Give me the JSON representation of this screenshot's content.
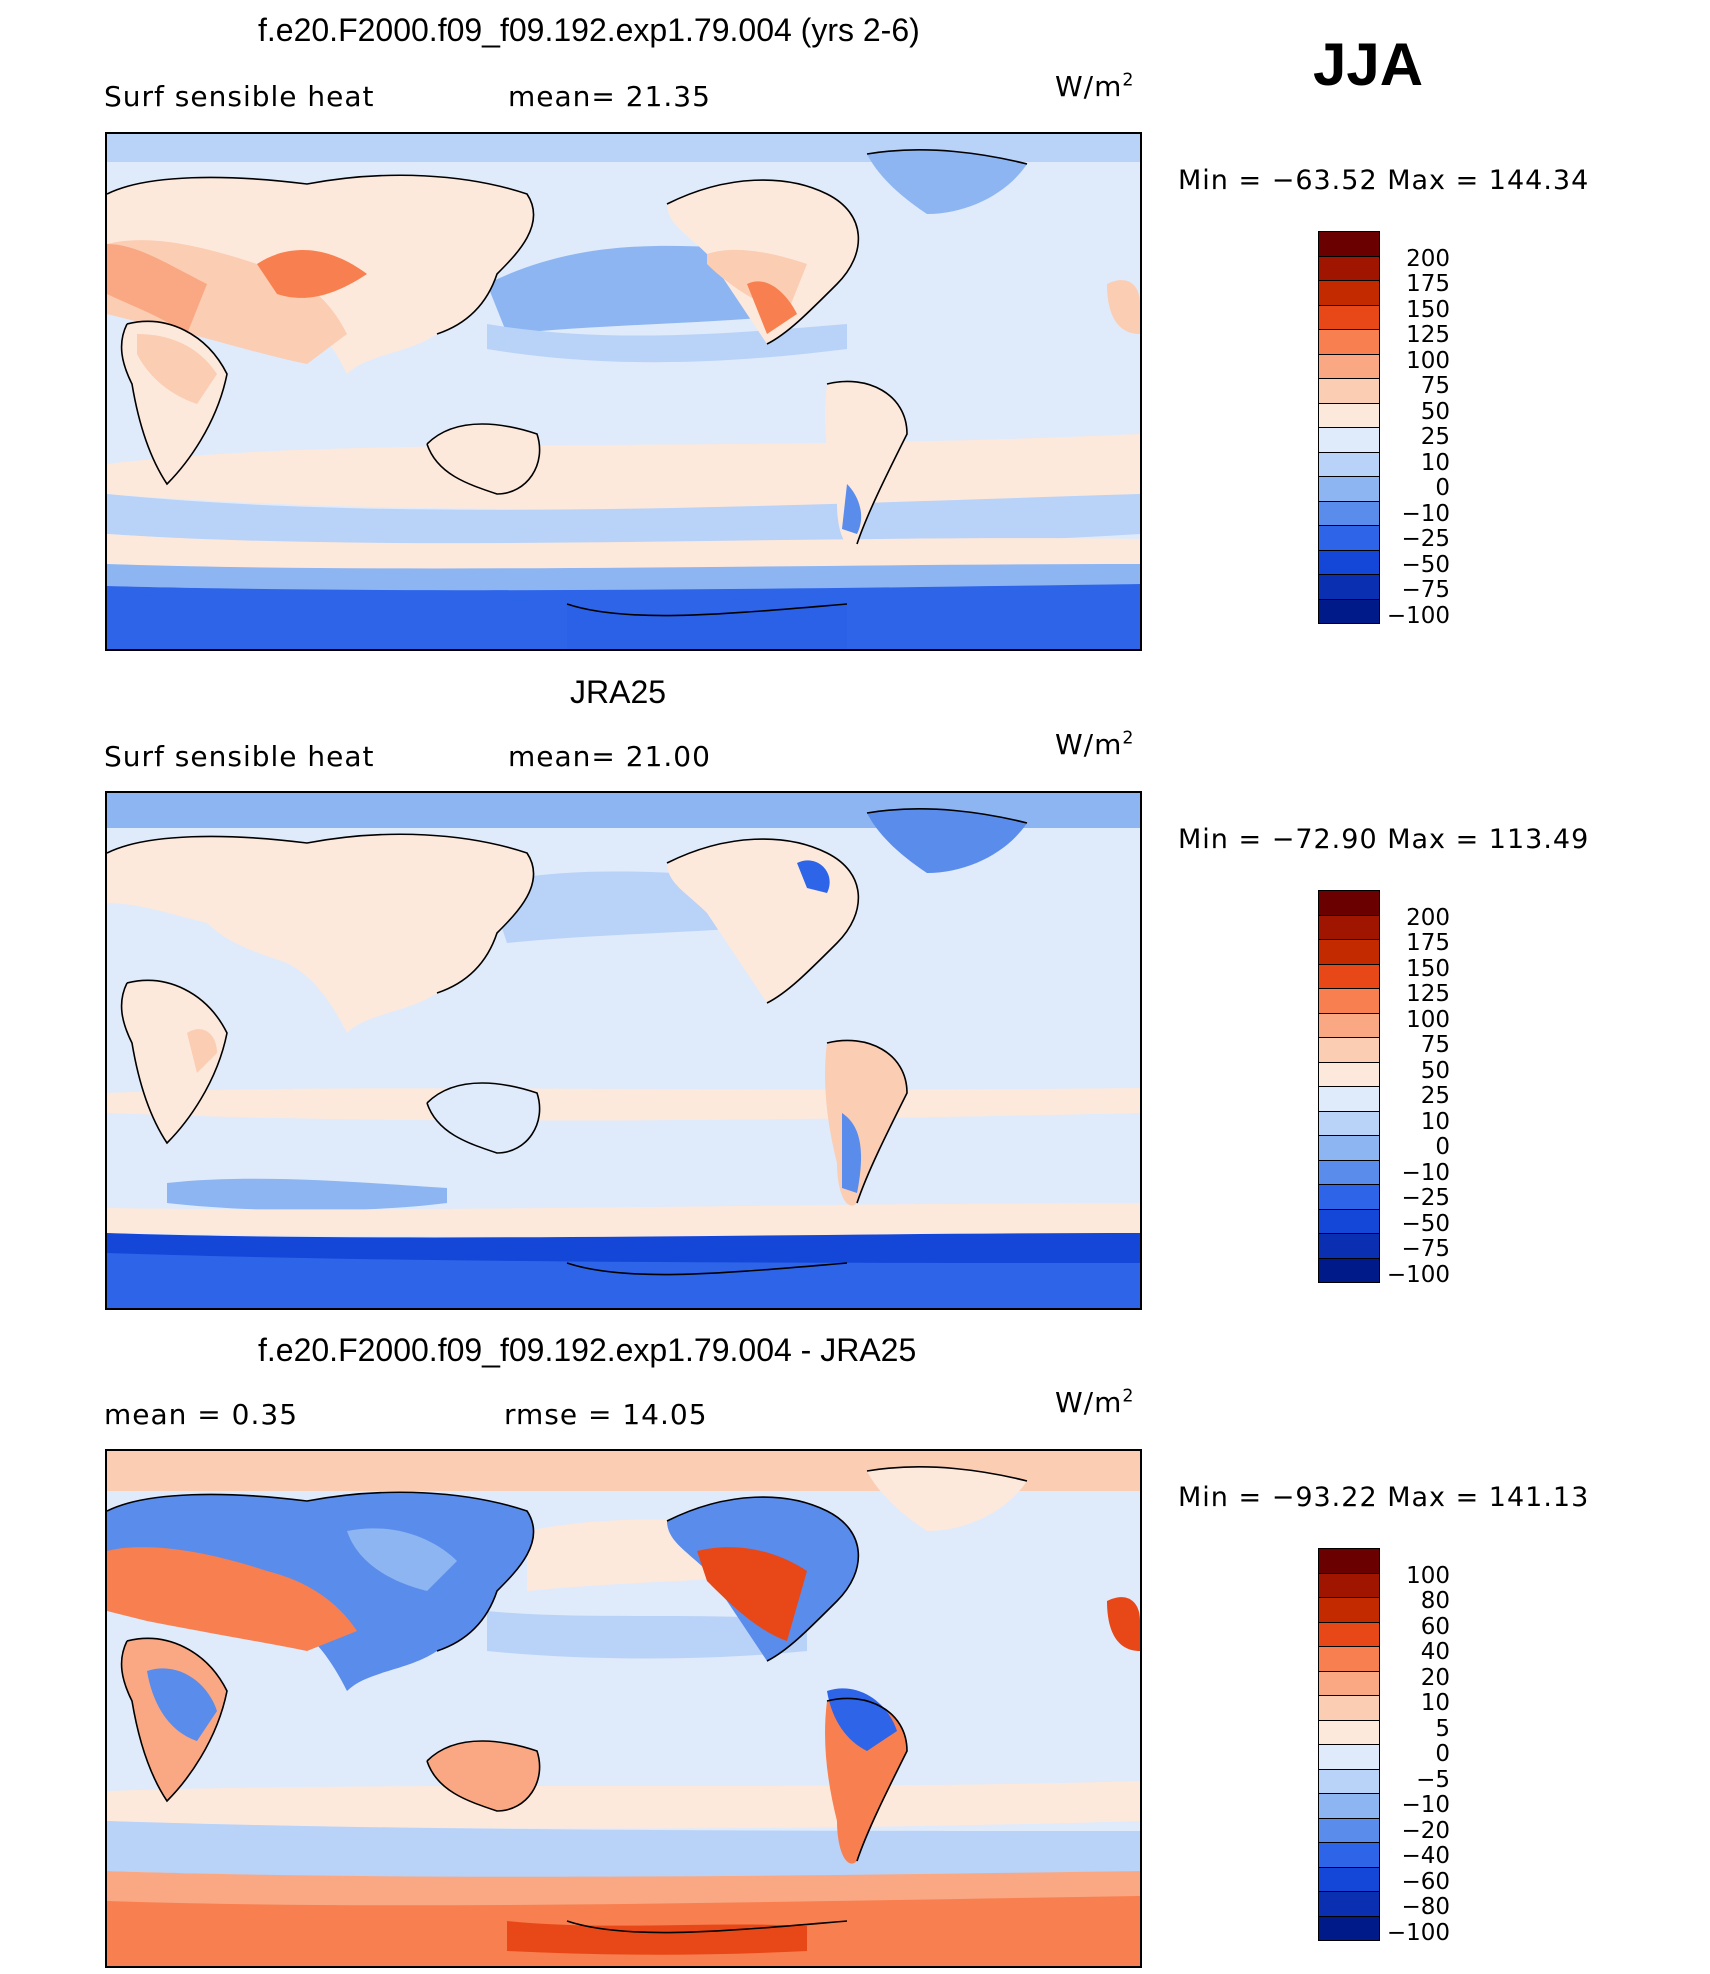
{
  "season": "JJA",
  "units": "W/m",
  "units_sup": "2",
  "panels": [
    {
      "title": "f.e20.F2000.f09_f09.192.exp1.79.004 (yrs 2-6)",
      "left_label": "Surf  sensible  heat",
      "mid_label": "mean=   21.35",
      "minmax": "Min  =  −63.52  Max  =  144.34",
      "levels": [
        "200",
        "175",
        "150",
        "125",
        "100",
        "75",
        "50",
        "25",
        "10",
        "0",
        "−10",
        "−25",
        "−50",
        "−75",
        "−100"
      ]
    },
    {
      "title": "JRA25",
      "left_label": "Surf  sensible  heat",
      "mid_label": "mean=   21.00",
      "minmax": "Min  =  −72.90  Max  =  113.49",
      "levels": [
        "200",
        "175",
        "150",
        "125",
        "100",
        "75",
        "50",
        "25",
        "10",
        "0",
        "−10",
        "−25",
        "−50",
        "−75",
        "−100"
      ]
    },
    {
      "title": "f.e20.F2000.f09_f09.192.exp1.79.004 - JRA25",
      "left_label": "mean  =     0.35",
      "mid_label": "rmse  =    14.05",
      "minmax": "Min  =  −93.22  Max  =  141.13",
      "levels": [
        "100",
        "80",
        "60",
        "40",
        "20",
        "10",
        "5",
        "0",
        "−5",
        "−10",
        "−20",
        "−40",
        "−60",
        "−80",
        "−100"
      ]
    }
  ],
  "colors": {
    "palette": [
      "#6b0000",
      "#a01500",
      "#c42a00",
      "#e84818",
      "#f87f4f",
      "#f9a883",
      "#fbcdb3",
      "#fde9dc",
      "#dfeafa",
      "#b9d2f7",
      "#8cb5f2",
      "#5a8ceb",
      "#2d64e8",
      "#1446d8",
      "#0a2fb0",
      "#001a8a"
    ]
  }
}
